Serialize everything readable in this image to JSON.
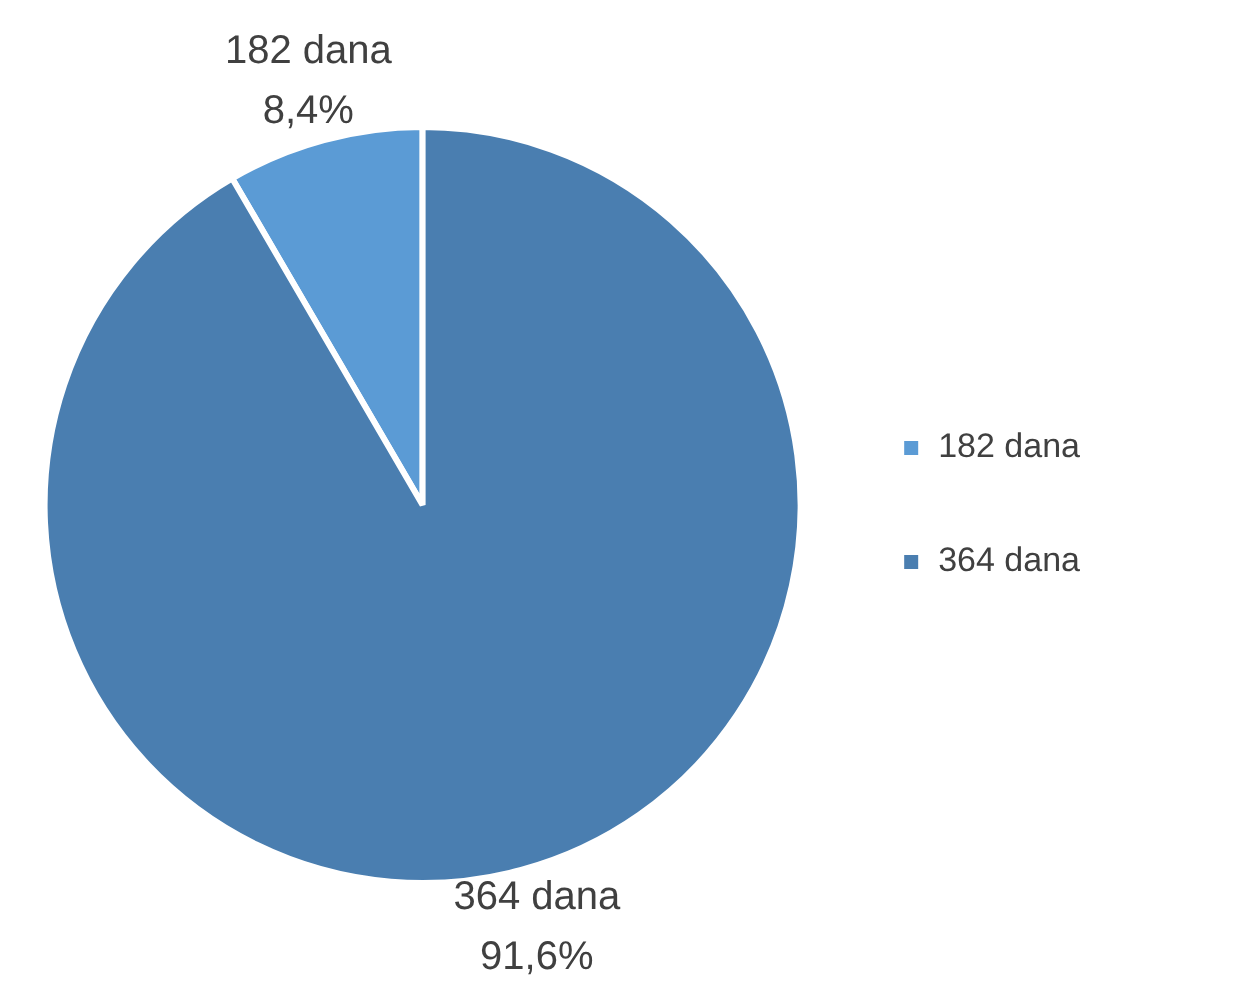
{
  "chart_data": {
    "type": "pie",
    "categories": [
      "182 dana",
      "364 dana"
    ],
    "values": [
      8.4,
      91.6
    ],
    "colors": [
      "#5b9bd5",
      "#4a7eb0"
    ],
    "value_labels": [
      "8,4%",
      "91,6%"
    ],
    "legend": "right"
  }
}
